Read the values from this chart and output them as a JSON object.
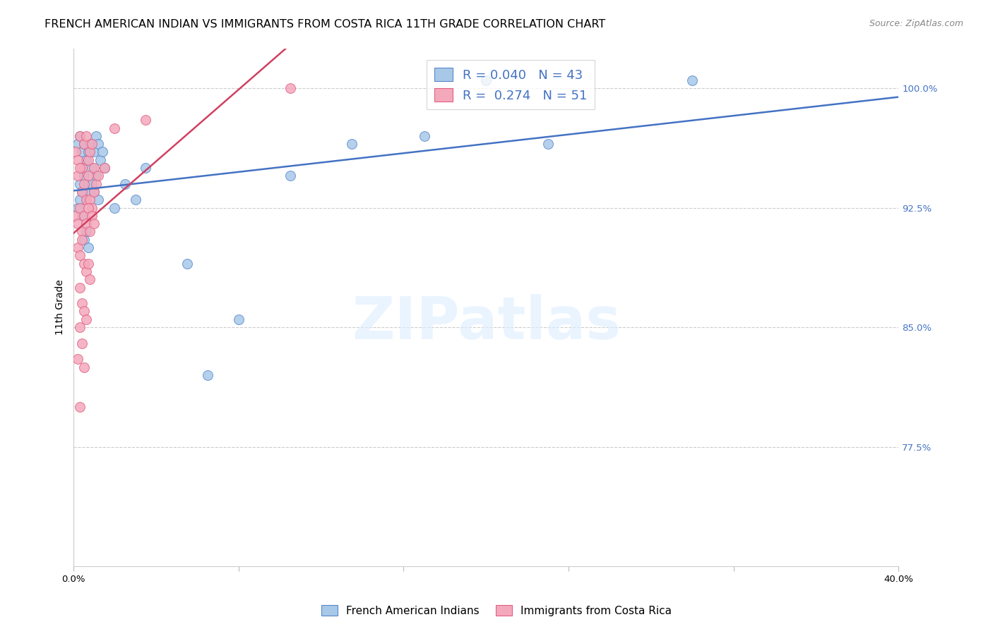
{
  "title": "FRENCH AMERICAN INDIAN VS IMMIGRANTS FROM COSTA RICA 11TH GRADE CORRELATION CHART",
  "source": "Source: ZipAtlas.com",
  "ylabel": "11th Grade",
  "y_ticks": [
    100.0,
    92.5,
    85.0,
    77.5
  ],
  "y_tick_labels": [
    "100.0%",
    "92.5%",
    "85.0%",
    "77.5%"
  ],
  "xlim": [
    0.0,
    40.0
  ],
  "ylim": [
    70.0,
    102.5
  ],
  "R_blue": 0.04,
  "N_blue": 43,
  "R_pink": 0.274,
  "N_pink": 51,
  "legend_label_blue": "French American Indians",
  "legend_label_pink": "Immigrants from Costa Rica",
  "blue_color": "#A8C8E8",
  "pink_color": "#F4A8BC",
  "blue_edge_color": "#5588CC",
  "pink_edge_color": "#E06080",
  "blue_line_color": "#4472C4",
  "pink_line_color": "#D04060",
  "text_blue_color": "#4472C4",
  "watermark_text": "ZIPatlas",
  "blue_scatter_x": [
    0.2,
    0.3,
    0.4,
    0.5,
    0.6,
    0.7,
    0.8,
    0.9,
    1.0,
    1.1,
    1.2,
    1.3,
    1.4,
    0.3,
    0.4,
    0.5,
    0.6,
    0.7,
    0.8,
    0.9,
    1.0,
    1.1,
    1.2,
    0.2,
    0.3,
    0.4,
    2.5,
    3.5,
    5.5,
    8.0,
    10.5,
    13.5,
    17.0,
    20.0,
    23.0,
    0.5,
    0.6,
    0.7,
    1.5,
    2.0,
    3.0,
    30.0,
    6.5
  ],
  "blue_scatter_y": [
    96.5,
    97.0,
    96.0,
    96.5,
    95.5,
    96.0,
    96.5,
    95.0,
    96.0,
    97.0,
    96.5,
    95.5,
    96.0,
    94.0,
    93.5,
    94.5,
    93.0,
    94.0,
    93.5,
    94.0,
    93.5,
    94.5,
    93.0,
    92.5,
    93.0,
    92.0,
    94.0,
    95.0,
    89.0,
    85.5,
    94.5,
    96.5,
    97.0,
    100.5,
    96.5,
    90.5,
    91.0,
    90.0,
    95.0,
    92.5,
    93.0,
    100.5,
    82.0
  ],
  "pink_scatter_x": [
    0.1,
    0.2,
    0.3,
    0.4,
    0.5,
    0.6,
    0.7,
    0.8,
    0.9,
    1.0,
    0.2,
    0.3,
    0.4,
    0.5,
    0.6,
    0.7,
    0.8,
    0.9,
    1.0,
    1.1,
    0.1,
    0.2,
    0.3,
    0.4,
    0.5,
    0.6,
    0.7,
    0.8,
    0.9,
    1.0,
    0.2,
    0.3,
    0.4,
    0.5,
    0.6,
    0.7,
    0.8,
    0.3,
    0.4,
    0.5,
    0.6,
    1.2,
    1.5,
    2.0,
    3.5,
    0.3,
    0.4,
    0.2,
    0.5,
    0.3,
    10.5
  ],
  "pink_scatter_y": [
    96.0,
    95.5,
    97.0,
    95.0,
    96.5,
    97.0,
    95.5,
    96.0,
    96.5,
    95.0,
    94.5,
    95.0,
    93.5,
    94.0,
    93.0,
    94.5,
    93.0,
    92.5,
    93.5,
    94.0,
    92.0,
    91.5,
    92.5,
    91.0,
    92.0,
    91.5,
    92.5,
    91.0,
    92.0,
    91.5,
    90.0,
    89.5,
    90.5,
    89.0,
    88.5,
    89.0,
    88.0,
    87.5,
    86.5,
    86.0,
    85.5,
    94.5,
    95.0,
    97.5,
    98.0,
    85.0,
    84.0,
    83.0,
    82.5,
    80.0,
    100.0
  ],
  "title_fontsize": 11.5,
  "source_fontsize": 9,
  "axis_label_fontsize": 10,
  "tick_label_fontsize": 9.5,
  "scatter_size": 100,
  "line_width": 1.8
}
